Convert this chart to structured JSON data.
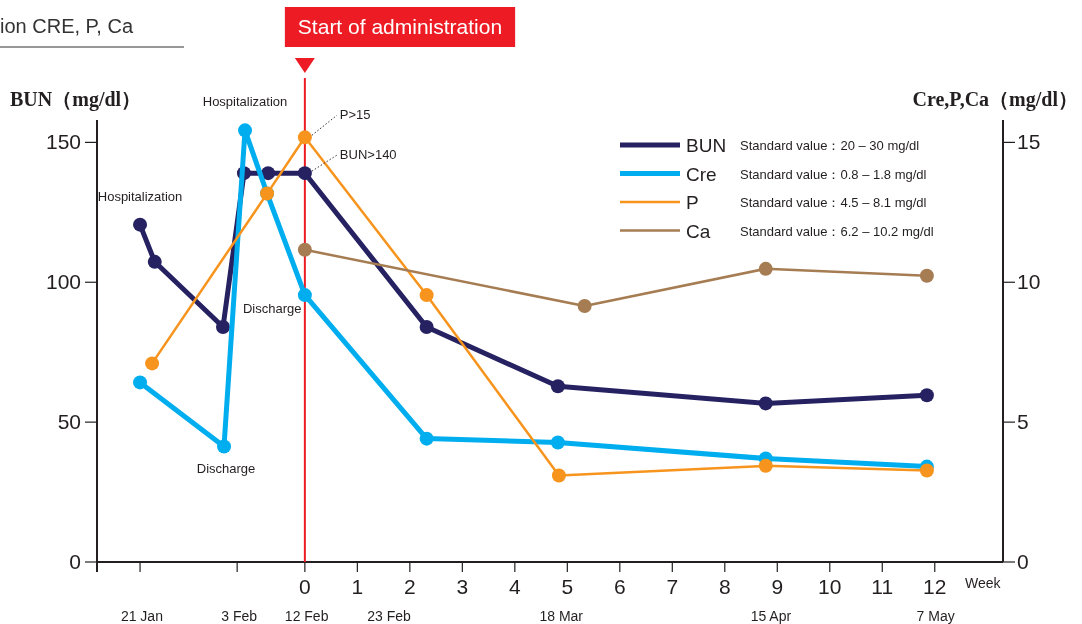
{
  "chart_data": {
    "type": "line",
    "title": "ion CRE, P, Ca",
    "xlabel": "Week",
    "ylabel": "BUN（mg/dl）",
    "y2label": "Cre,P,Ca（mg/dl）",
    "xlim": [
      -3.96,
      13.3
    ],
    "xticks": [
      {
        "value": -3.14,
        "label": null
      },
      {
        "value": -1.29,
        "label": null
      },
      0,
      1,
      2,
      3,
      4,
      5,
      6,
      7,
      8,
      9,
      10,
      11,
      12
    ],
    "x2lim": [
      "--01-15",
      "--05-16"
    ],
    "x2ticks": [
      {
        "value": "--01-21",
        "label": "21 Jan"
      },
      {
        "value": "--02-03",
        "label": "3 Feb"
      },
      {
        "value": "--02-12",
        "label": "12 Feb"
      },
      {
        "value": "--02-23",
        "label": "23 Feb"
      },
      {
        "value": "--03-18",
        "label": "18 Mar"
      },
      {
        "value": "--04-15",
        "label": "15 Apr"
      },
      {
        "value": "--05-07",
        "label": "7 May"
      }
    ],
    "ylim": [
      0,
      158
    ],
    "yticks": [
      0,
      50,
      100,
      150
    ],
    "y2lim": [
      0,
      15.8
    ],
    "y2ticks": [
      0,
      5,
      10,
      15
    ],
    "marker": "circle",
    "line_style": "solid",
    "legend": "top right",
    "series": [
      {
        "name": "BUN",
        "color": "#262262",
        "x": [
          -3.14,
          -2.86,
          -1.56,
          -1.16,
          -0.7,
          0,
          2.32,
          4.82,
          8.78,
          11.85
        ],
        "values": [
          120.6,
          107.3,
          84,
          139,
          139,
          139,
          84,
          62.8,
          56.7,
          59.6
        ]
      },
      {
        "name": "Cre",
        "color": "#00aeef",
        "axis": "y2",
        "x": [
          -3.14,
          -1.54,
          -1.14,
          -0.72,
          0,
          2.32,
          4.82,
          8.78,
          11.85
        ],
        "values": [
          6.42,
          4.13,
          15.43,
          13.17,
          9.54,
          4.41,
          4.27,
          3.7,
          3.41
        ]
      },
      {
        "name": "P",
        "color": "#f7941d",
        "axis": "y2",
        "x": [
          -2.91,
          -0.72,
          0,
          2.32,
          4.84,
          8.78,
          11.85
        ],
        "values": [
          7.1,
          13.17,
          15.18,
          9.54,
          3.09,
          3.44,
          3.27
        ]
      },
      {
        "name": "Ca",
        "color": "#a67c52",
        "axis": "y2",
        "x": [
          0,
          5.33,
          8.78,
          11.85
        ],
        "values": [
          11.16,
          9.15,
          10.48,
          10.23
        ]
      }
    ],
    "ref_lines": [
      {
        "axis": "x",
        "value": 0,
        "label": "Start of administration",
        "color": "#ed1c24"
      }
    ],
    "annotations": [
      "Standard value：20 – 30 mg/dl",
      "Standard value：0.8 – 1.8 mg/dl",
      "Standard value：4.5 – 8.1 mg/dl",
      "Standard value：6.2 – 10.2 mg/dl",
      {
        "text": "Hospitalization",
        "x": -3.14,
        "y": 120.6
      },
      {
        "text": "Hospitalization",
        "x": -1.14,
        "y": 154
      },
      {
        "text": "Discharge",
        "x": -1.56,
        "y": 84
      },
      {
        "text": "Discharge",
        "x": -1.54,
        "y": 41.3
      },
      {
        "text": "P>15",
        "x": 0,
        "y": 151.8
      },
      {
        "text": "BUN>140",
        "x": 0,
        "y": 139
      }
    ]
  }
}
